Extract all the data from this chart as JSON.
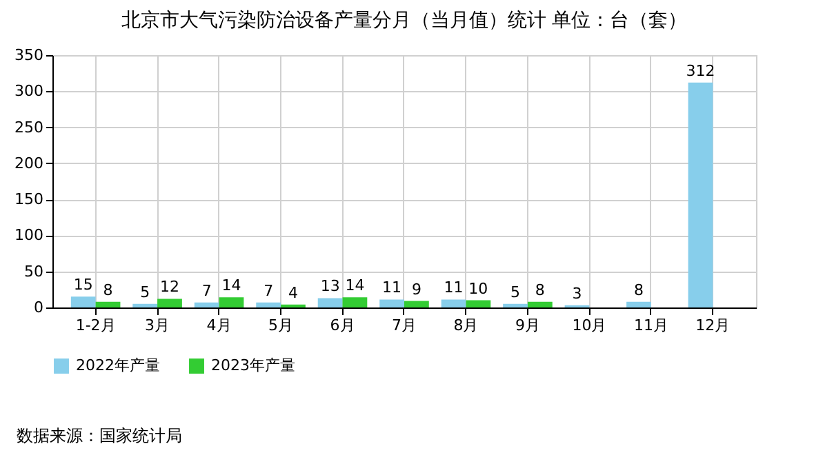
{
  "chart_data": {
    "type": "bar",
    "title": "北京市大气污染防治设备产量分月（当月值）统计  单位：台（套）",
    "categories": [
      "1-2月",
      "3月",
      "4月",
      "5月",
      "6月",
      "7月",
      "8月",
      "9月",
      "10月",
      "11月",
      "12月"
    ],
    "series": [
      {
        "name": "2022年产量",
        "color": "#87ceeb",
        "values": [
          15,
          5,
          7,
          7,
          13,
          11,
          11,
          5,
          3,
          8,
          312
        ]
      },
      {
        "name": "2023年产量",
        "color": "#33cc33",
        "values": [
          8,
          12,
          14,
          4,
          14,
          9,
          10,
          8,
          null,
          null,
          null
        ]
      }
    ],
    "ylim": [
      0,
      350
    ],
    "yticks": [
      0,
      50,
      100,
      150,
      200,
      250,
      300,
      350
    ],
    "grid": true,
    "legend": "bottom",
    "data_labels": true,
    "annotations": [
      "数据来源：国家统计局"
    ]
  }
}
